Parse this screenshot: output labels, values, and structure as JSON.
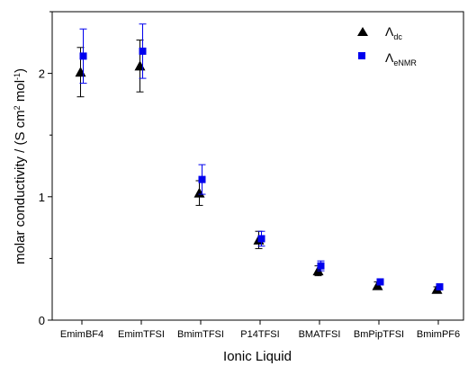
{
  "chart_data": {
    "type": "scatter",
    "title": "",
    "xlabel": "Ionic Liquid",
    "ylabel": "molar conductivity / (S cm² mol⁻¹)",
    "ylabel_parts": {
      "main": "molar conductivity / (S cm",
      "sup1": "2",
      "mid": " mol",
      "sup2": "-1",
      "end": ")"
    },
    "categories": [
      "EmimBF4",
      "EmimTFSI",
      "BmimTFSI",
      "P14TFSI",
      "BMATFSI",
      "BmPipTFSI",
      "BmimPF6"
    ],
    "y_ticks": [
      "0",
      "1",
      "2"
    ],
    "ylim": [
      0,
      2.5
    ],
    "grid": false,
    "legend_position": "top-right",
    "series": [
      {
        "name": "Λdc",
        "symbol": "Λ",
        "subscript": "dc",
        "marker": "triangle",
        "color": "#000000",
        "values": [
          2.01,
          2.06,
          1.03,
          0.65,
          0.4,
          0.28,
          0.25
        ],
        "errors": [
          0.2,
          0.21,
          0.1,
          0.07,
          0.04,
          0.03,
          0.02
        ]
      },
      {
        "name": "ΛeNMR",
        "symbol": "Λ",
        "subscript": "eNMR",
        "marker": "square",
        "color": "#0000ee",
        "values": [
          2.14,
          2.18,
          1.14,
          0.66,
          0.44,
          0.31,
          0.27
        ],
        "errors": [
          0.22,
          0.22,
          0.12,
          0.06,
          0.04,
          0.02,
          0.02
        ]
      }
    ]
  }
}
